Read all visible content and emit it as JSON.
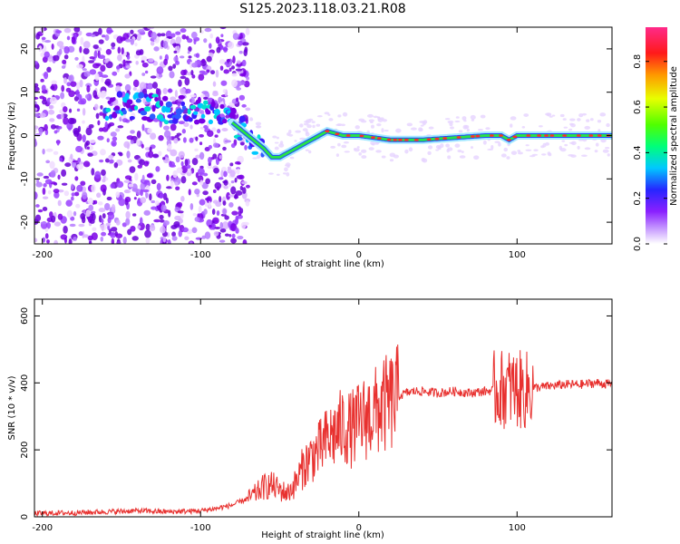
{
  "title": "S125.2023.118.03.21.R08",
  "colors": {
    "snr_line": "#e8312f",
    "track_strong": "#ff2a2a",
    "track_mid": "#28e04a",
    "scatter": "#7a00e6"
  },
  "chart_data": [
    {
      "type": "heatmap",
      "xlabel": "Height of straight line (km)",
      "ylabel": "Frequency (Hz)",
      "xlim": [
        -205,
        160
      ],
      "ylim": [
        -25,
        25
      ],
      "xticks": [
        -200,
        -100,
        0,
        100
      ],
      "yticks": [
        -20,
        -10,
        0,
        10,
        20
      ],
      "grid": false,
      "colorbar": {
        "label": "Normalized spectral amplitude",
        "range": [
          0.0,
          0.95
        ],
        "ticks": [
          "0.0",
          "0.2",
          "0.4",
          "0.6",
          "0.8"
        ],
        "colormap": "rainbow (white-purple-blue-cyan-green-yellow-red-pink)"
      },
      "ridge_line": {
        "x": [
          -140,
          -120,
          -100,
          -90,
          -80,
          -70,
          -60,
          -55,
          -50,
          -45,
          -40,
          -35,
          -30,
          -25,
          -20,
          -10,
          0,
          20,
          40,
          60,
          80,
          90,
          95,
          100,
          120,
          140,
          160
        ],
        "y": [
          7,
          6,
          6,
          5,
          3,
          0,
          -3,
          -5,
          -5,
          -4,
          -3,
          -2,
          -1,
          0,
          1,
          0,
          0,
          -1,
          -1,
          -0.5,
          0,
          0,
          -1,
          0,
          0,
          0,
          0
        ]
      }
    },
    {
      "type": "line",
      "xlabel": "Height of straight line (km)",
      "ylabel": "SNR (10 * v/v)",
      "xlim": [
        -205,
        160
      ],
      "ylim": [
        0,
        650
      ],
      "xticks": [
        -200,
        -100,
        0,
        100
      ],
      "yticks": [
        0,
        200,
        400,
        600
      ],
      "grid": false,
      "series": [
        {
          "x": [
            -205,
            -180,
            -160,
            -140,
            -120,
            -100,
            -90,
            -80,
            -70,
            -65,
            -60,
            -55,
            -50,
            -45,
            -40,
            -35,
            -30,
            -25,
            -20,
            -15,
            -10,
            -5,
            0,
            5,
            10,
            15,
            20,
            25,
            30,
            35,
            40,
            50,
            60,
            70,
            80,
            90,
            95,
            100,
            105,
            110,
            120,
            130,
            140,
            150,
            160
          ],
          "y": [
            10,
            12,
            15,
            18,
            15,
            18,
            25,
            35,
            55,
            70,
            90,
            95,
            80,
            70,
            100,
            150,
            180,
            200,
            230,
            250,
            270,
            260,
            280,
            300,
            310,
            330,
            340,
            360,
            370,
            375,
            375,
            370,
            375,
            370,
            375,
            380,
            385,
            380,
            375,
            385,
            390,
            395,
            395,
            400,
            395
          ]
        }
      ]
    }
  ]
}
